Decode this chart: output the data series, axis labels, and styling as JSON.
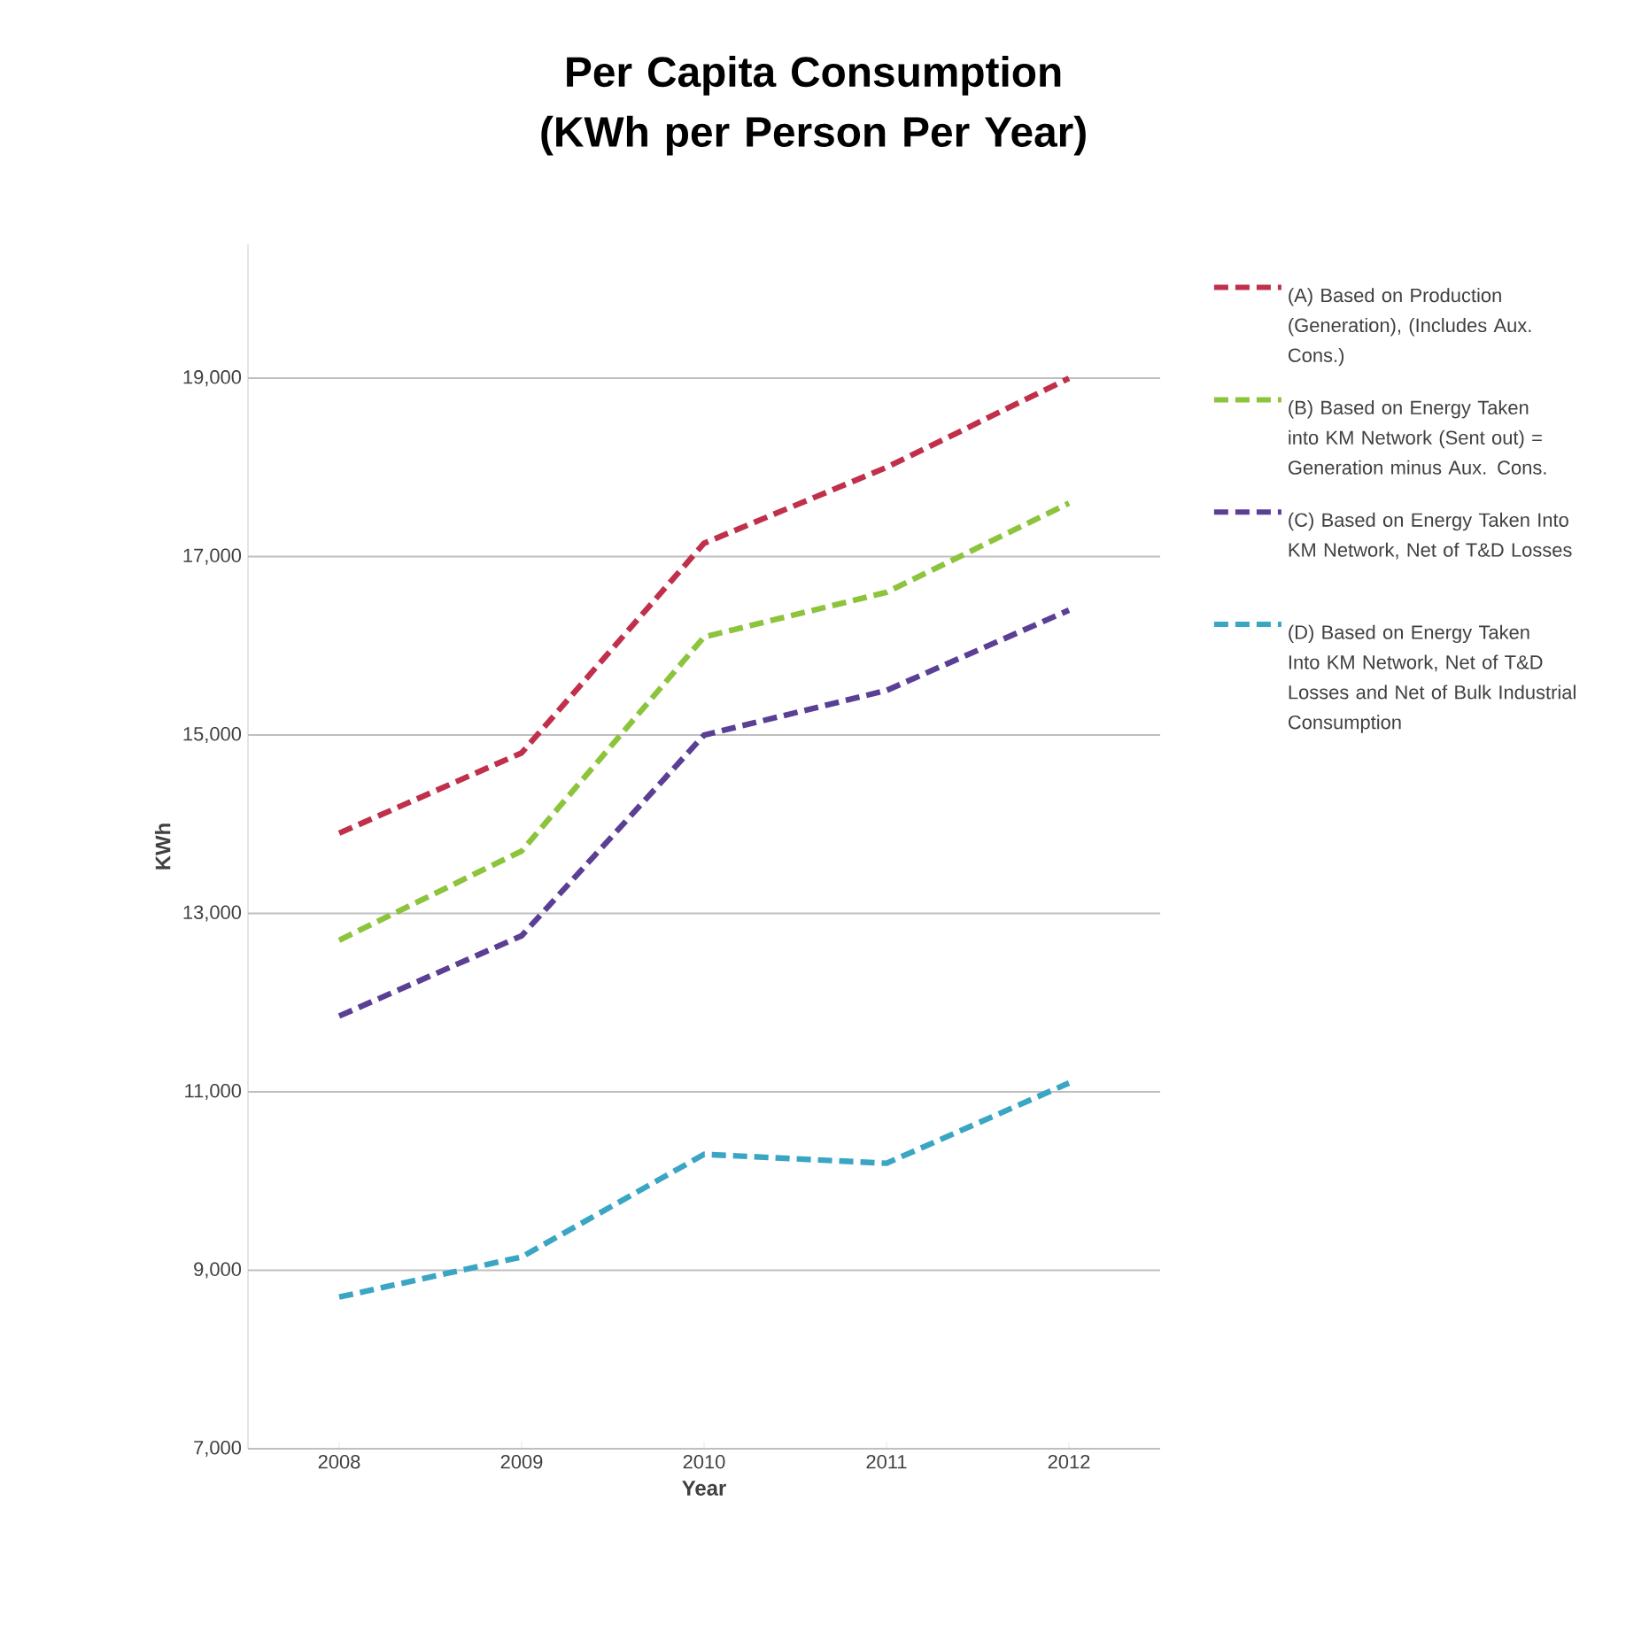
{
  "chart_data": {
    "type": "line",
    "title": "Per Capita Consumption (KWh per Person Per Year)",
    "xlabel": "Year",
    "ylabel": "KWh",
    "categories": [
      "2008",
      "2009",
      "2010",
      "2011",
      "2012"
    ],
    "series": [
      {
        "name": "(A) Based on Production (Generation), (Includes Aux. Cons.)",
        "color": "#c0304a",
        "values": [
          13900,
          14800,
          17150,
          18000,
          19000
        ]
      },
      {
        "name": "(B) Based on Energy Taken into KM Network (Sent out) = Generation minus Aux.  Cons.",
        "color": "#8cc43c",
        "values": [
          12700,
          13700,
          16100,
          16600,
          17600
        ]
      },
      {
        "name": "(C) Based on Energy Taken Into KM Network, Net of T&D Losses",
        "color": "#5a3f94",
        "values": [
          11850,
          12750,
          15000,
          15500,
          16400
        ]
      },
      {
        "name": "(D) Based on Energy Taken Into KM Network, Net of T&D Losses and Net of Bulk Industrial Consumption",
        "color": "#3aa6c4",
        "values": [
          8700,
          9150,
          10300,
          10200,
          11100
        ]
      }
    ],
    "ylim": [
      7000,
      20500
    ],
    "yticks": [
      {
        "value": 7000,
        "label": "7,000"
      },
      {
        "value": 9000,
        "label": "9,000"
      },
      {
        "value": 11000,
        "label": "11,000"
      },
      {
        "value": 13000,
        "label": "13,000"
      },
      {
        "value": 15000,
        "label": "15,000"
      },
      {
        "value": 17000,
        "label": "17,000"
      },
      {
        "value": 19000,
        "label": "19,000"
      }
    ],
    "grid": "y",
    "legend": "right",
    "marker": "none",
    "line_style": "dashed"
  }
}
